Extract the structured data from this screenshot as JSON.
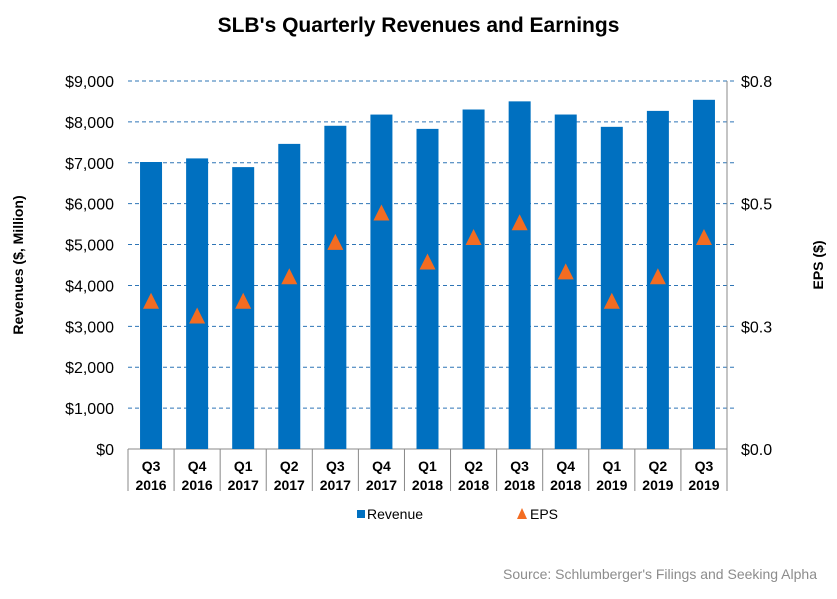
{
  "chart_data": {
    "type": "bar",
    "title": "SLB's Quarterly Revenues and Earnings",
    "categories": [
      [
        "Q3",
        "2016"
      ],
      [
        "Q4",
        "2016"
      ],
      [
        "Q1",
        "2017"
      ],
      [
        "Q2",
        "2017"
      ],
      [
        "Q3",
        "2017"
      ],
      [
        "Q4",
        "2017"
      ],
      [
        "Q1",
        "2018"
      ],
      [
        "Q2",
        "2018"
      ],
      [
        "Q3",
        "2018"
      ],
      [
        "Q4",
        "2018"
      ],
      [
        "Q1",
        "2019"
      ],
      [
        "Q2",
        "2019"
      ],
      [
        "Q3",
        "2019"
      ]
    ],
    "series": [
      {
        "name": "Revenue",
        "type": "bar",
        "axis": "left",
        "color": "#0070C0",
        "values": [
          7019,
          7107,
          6894,
          7462,
          7905,
          8179,
          7829,
          8303,
          8502,
          8180,
          7879,
          8269,
          8540
        ]
      },
      {
        "name": "EPS",
        "type": "scatter",
        "marker": "triangle",
        "axis": "right",
        "color": "#F36C21",
        "values": [
          0.3,
          0.27,
          0.3,
          0.35,
          0.42,
          0.48,
          0.38,
          0.43,
          0.46,
          0.36,
          0.3,
          0.35,
          0.43
        ]
      }
    ],
    "ylabel": "Revenues ($, Million)",
    "ylim": [
      0,
      9000
    ],
    "yticks": [
      "$0",
      "$1,000",
      "$2,000",
      "$3,000",
      "$4,000",
      "$5,000",
      "$6,000",
      "$7,000",
      "$8,000",
      "$9,000"
    ],
    "y2label": "EPS ($)",
    "y2lim": [
      0,
      0.75
    ],
    "y2ticks": [
      "$0.0",
      "$0.3",
      "$0.5",
      "$0.8"
    ],
    "grid": true,
    "legend": "bottom"
  },
  "source": "Source: Schlumberger's Filings and Seeking Alpha"
}
